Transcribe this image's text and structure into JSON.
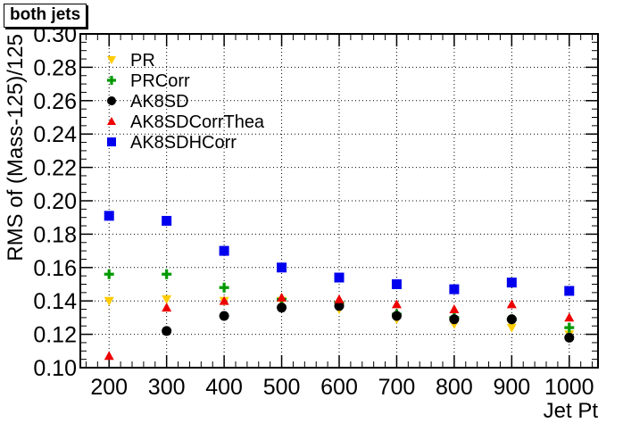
{
  "title": "both jets",
  "chart_data": {
    "type": "scatter",
    "title": "both jets",
    "xlabel": "Jet Pt",
    "ylabel": "RMS of (Mass-125)/125",
    "xlim": [
      150,
      1050
    ],
    "ylim": [
      0.1,
      0.3
    ],
    "x_ticks": [
      200,
      300,
      400,
      500,
      600,
      700,
      800,
      900,
      1000
    ],
    "y_ticks": [
      "0.10",
      "0.12",
      "0.14",
      "0.16",
      "0.18",
      "0.20",
      "0.22",
      "0.24",
      "0.26",
      "0.28",
      "0.30"
    ],
    "grid": true,
    "legend_position": "top-left",
    "x": [
      200,
      300,
      400,
      500,
      600,
      700,
      800,
      900,
      1000
    ],
    "series": [
      {
        "name": "PR",
        "marker": "triangle-down",
        "color": "#ffcc00",
        "values": [
          0.14,
          0.141,
          0.14,
          0.14,
          0.135,
          0.129,
          0.126,
          0.124,
          0.12
        ]
      },
      {
        "name": "PRCorr",
        "marker": "cross",
        "color": "#009900",
        "values": [
          0.156,
          0.156,
          0.148,
          0.141,
          0.139,
          0.132,
          0.13,
          0.129,
          0.124
        ]
      },
      {
        "name": "AK8SD",
        "marker": "circle",
        "color": "#000000",
        "values": [
          null,
          0.122,
          0.131,
          0.136,
          0.137,
          0.131,
          0.129,
          0.129,
          0.118
        ]
      },
      {
        "name": "AK8SDCorrThea",
        "marker": "triangle-up",
        "color": "#ee0000",
        "values": [
          0.107,
          0.136,
          0.14,
          0.142,
          0.141,
          0.138,
          0.135,
          0.138,
          0.13
        ]
      },
      {
        "name": "AK8SDHCorr",
        "marker": "square",
        "color": "#0000ee",
        "values": [
          0.191,
          0.188,
          0.17,
          0.16,
          0.154,
          0.15,
          0.147,
          0.151,
          0.146
        ]
      }
    ]
  }
}
